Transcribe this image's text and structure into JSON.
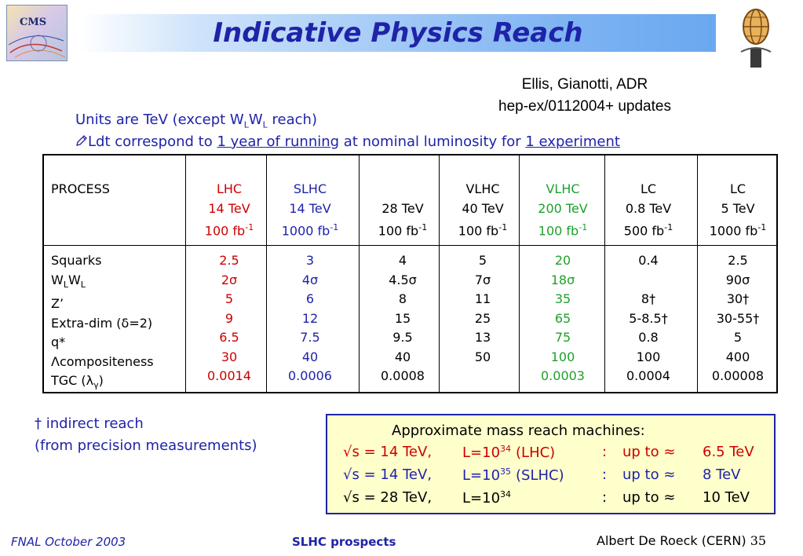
{
  "header": {
    "title": "Indicative Physics Reach",
    "cms_logo_text": "CMS"
  },
  "citation": {
    "line1": "Ellis, Gianotti, ADR",
    "line2": "hep-ex/0112004+ updates"
  },
  "intro": {
    "units_prefix": "Units are TeV (except W",
    "units_sub1": "L",
    "units_mid": "W",
    "units_sub2": "L",
    "units_suffix": " reach)",
    "ldt_icon": "pencil-icon",
    "ldt_prefix": "Ldt  correspond to ",
    "ldt_underline1": "1 year of running",
    "ldt_mid": " at nominal luminosity for ",
    "ldt_underline2": "1 experiment"
  },
  "table": {
    "process_header": "PROCESS",
    "columns": [
      {
        "name": "LHC",
        "energy": "14 TeV",
        "lumi": "100 fb",
        "lumi_exp": "-1",
        "color": "#cc0000",
        "values": [
          "2.5",
          "2σ",
          "5",
          "9",
          "6.5",
          "30",
          "0.0014"
        ]
      },
      {
        "name": "SLHC",
        "energy": "14 TeV",
        "lumi": "1000 fb",
        "lumi_exp": "-1",
        "color": "#1f23a8",
        "values": [
          "3",
          "4σ",
          "6",
          "12",
          "7.5",
          "40",
          "0.0006"
        ]
      },
      {
        "name": "",
        "energy": "28 TeV",
        "lumi": "100 fb",
        "lumi_exp": "-1",
        "color": "#000000",
        "values": [
          "4",
          "4.5σ",
          "8",
          "15",
          "9.5",
          "40",
          "0.0008"
        ]
      },
      {
        "name": "VLHC",
        "energy": "40 TeV",
        "lumi": "100 fb",
        "lumi_exp": "-1",
        "color": "#000000",
        "values": [
          "5",
          "7σ",
          "11",
          "25",
          "13",
          "50",
          ""
        ]
      },
      {
        "name": "VLHC",
        "energy": "200 TeV",
        "lumi": "100 fb",
        "lumi_exp": "-1",
        "color": "#1fa02a",
        "values": [
          "20",
          "18σ",
          "35",
          "65",
          "75",
          "100",
          "0.0003"
        ]
      },
      {
        "name": "LC",
        "energy": "0.8 TeV",
        "lumi": "500 fb",
        "lumi_exp": "-1",
        "color": "#000000",
        "values": [
          "0.4",
          "",
          "8†",
          "5-8.5†",
          "0.8",
          "100",
          "0.0004"
        ]
      },
      {
        "name": "LC",
        "energy": "5 TeV",
        "lumi": "1000 fb",
        "lumi_exp": "-1",
        "color": "#000000",
        "values": [
          "2.5",
          "90σ",
          "30†",
          "30-55†",
          "5",
          "400",
          "0.00008"
        ]
      }
    ],
    "processes": [
      "Squarks",
      "WLWL",
      "Z’",
      "Extra-dim (δ=2)",
      "q*",
      "Λcompositeness",
      "TGC (λγ)"
    ]
  },
  "footnote": {
    "line1": "† indirect reach",
    "line2": "(from precision measurements)"
  },
  "mass_reach": {
    "title": "Approximate mass reach machines:",
    "rows": [
      {
        "s": "√s = 14 TeV,",
        "lumi": "L=10",
        "exp": "34",
        "label": "(LHC)",
        "colon": ":",
        "upto": "up to ≈",
        "value": "6.5 TeV",
        "color": "#cc0000"
      },
      {
        "s": "√s = 14 TeV,",
        "lumi": "L=10",
        "exp": "35",
        "label": "(SLHC)",
        "colon": ":",
        "upto": "up to ≈",
        "value": "8 TeV",
        "color": "#1f23a8"
      },
      {
        "s": "√s = 28 TeV,",
        "lumi": "L=10",
        "exp": "34",
        "label": "",
        "colon": ":",
        "upto": "up to ≈",
        "value": "10 TeV",
        "color": "#000000"
      }
    ]
  },
  "footer": {
    "left": "FNAL  October 2003",
    "center": "SLHC prospects",
    "right": "Albert De Roeck (CERN)",
    "page": "35"
  }
}
